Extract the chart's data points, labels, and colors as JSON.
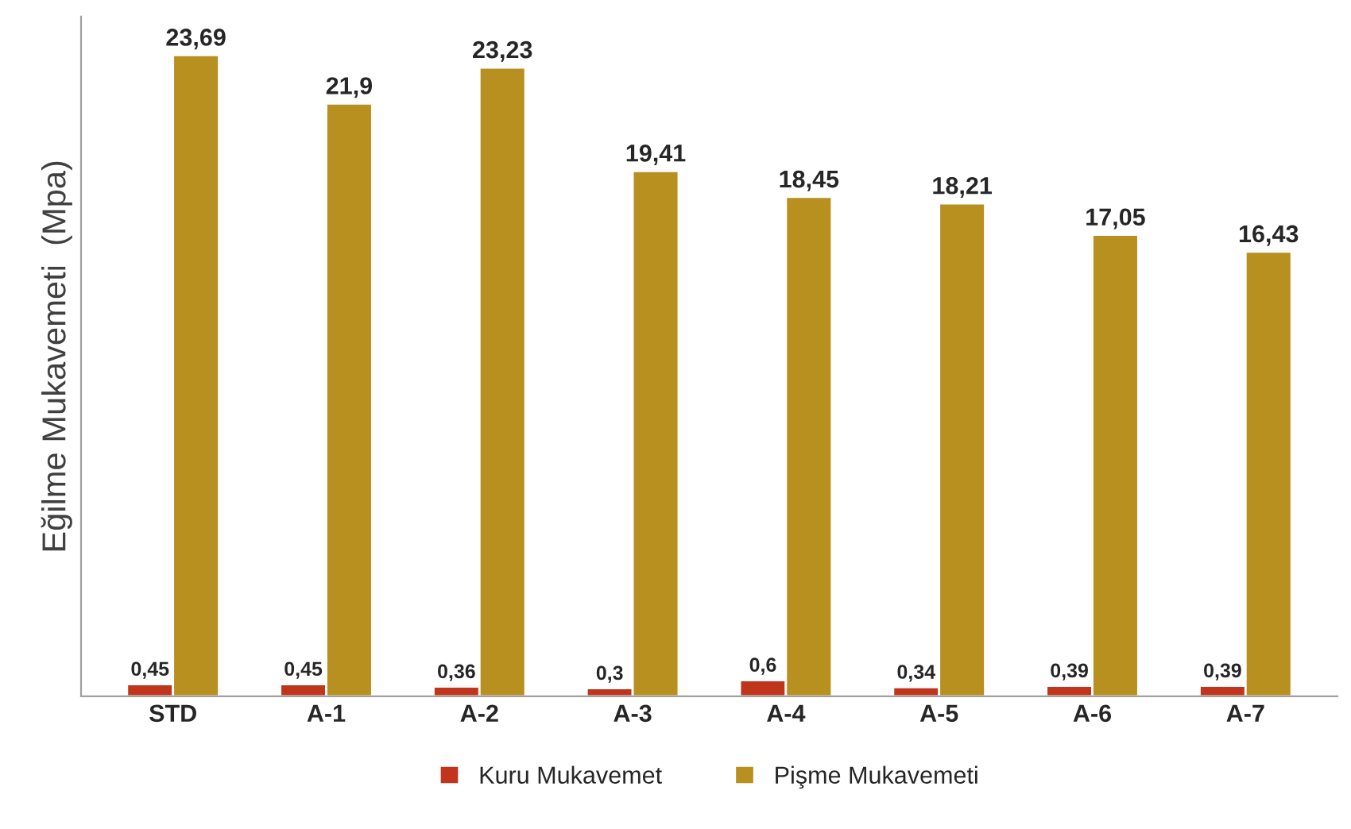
{
  "chart_data": {
    "type": "bar",
    "ylabel": "Eğilme Mukavemeti  (Mpa)",
    "categories": [
      "STD",
      "A-1",
      "A-2",
      "A-3",
      "A-4",
      "A-5",
      "A-6",
      "A-7"
    ],
    "series": [
      {
        "name": "Kuru Mukavemet",
        "color": "#c0351c",
        "values": [
          0.45,
          0.45,
          0.36,
          0.3,
          0.6,
          0.34,
          0.39,
          0.39
        ],
        "value_labels": [
          "0,45",
          "0,45",
          "0,36",
          "0,3",
          "0,6",
          "0,34",
          "0,39",
          "0,39"
        ]
      },
      {
        "name": "Pişme Mukavemeti",
        "color": "#b8901f",
        "values": [
          23.69,
          21.9,
          23.23,
          19.41,
          18.45,
          18.21,
          17.05,
          16.43
        ],
        "value_labels": [
          "23,69",
          "21,9",
          "23,23",
          "19,41",
          "18,45",
          "18,21",
          "17,05",
          "16,43"
        ]
      }
    ],
    "grid": false,
    "legend": "bottom",
    "tick_labels": "x"
  }
}
